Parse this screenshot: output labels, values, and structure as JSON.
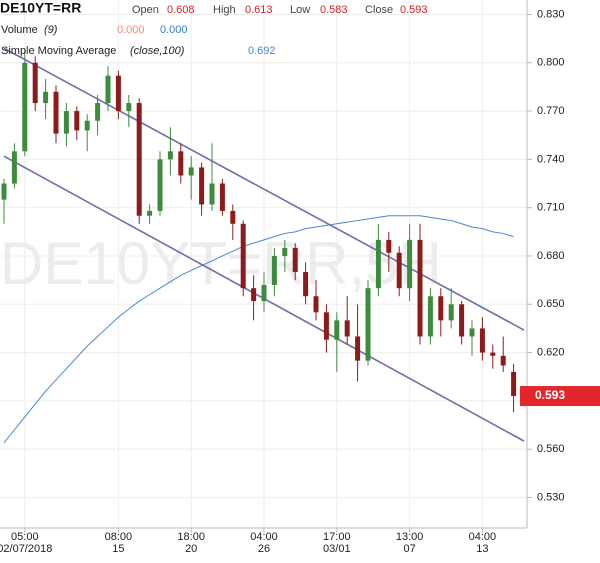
{
  "chart_data": {
    "type": "candlestick",
    "title": "DE10YT=RR",
    "watermark": "DE10YT=RR,5H",
    "ohlc_labels": {
      "open": "Open",
      "high": "High",
      "low": "Low",
      "close": "Close"
    },
    "up_color": "#3d8b3d",
    "down_color": "#8e1b1b",
    "categories": [
      null,
      null,
      "05:00",
      null,
      null,
      null,
      null,
      null,
      null,
      null,
      null,
      "08:00",
      null,
      null,
      null,
      null,
      null,
      null,
      "18:00",
      null,
      null,
      null,
      null,
      null,
      null,
      "04:00",
      null,
      null,
      null,
      null,
      null,
      null,
      "17:00",
      null,
      null,
      null,
      null,
      null,
      null,
      "13:00",
      null,
      null,
      null,
      null,
      null,
      null,
      "04:00",
      null,
      null,
      null
    ],
    "dates": [
      null,
      null,
      "02/07/2018",
      null,
      null,
      null,
      null,
      null,
      null,
      null,
      null,
      "15",
      null,
      null,
      null,
      null,
      null,
      null,
      "20",
      null,
      null,
      null,
      null,
      null,
      null,
      "26",
      null,
      null,
      null,
      null,
      null,
      null,
      "03/01",
      null,
      null,
      null,
      null,
      null,
      null,
      "07",
      null,
      null,
      null,
      null,
      null,
      null,
      "13",
      null,
      null,
      null
    ],
    "open": [
      0.715,
      0.725,
      0.745,
      0.8,
      0.775,
      0.782,
      0.756,
      0.77,
      0.758,
      0.764,
      0.775,
      0.792,
      0.77,
      0.775,
      0.705,
      0.708,
      0.74,
      0.745,
      0.73,
      0.735,
      0.712,
      0.725,
      0.708,
      0.7,
      0.66,
      0.652,
      0.662,
      0.68,
      0.685,
      0.67,
      0.655,
      0.645,
      0.628,
      0.64,
      0.63,
      0.615,
      0.66,
      0.69,
      0.682,
      0.66,
      0.69,
      0.63,
      0.655,
      0.64,
      0.65,
      0.63,
      0.635,
      0.62,
      0.618,
      0.608
    ],
    "high": [
      0.728,
      0.75,
      0.808,
      0.804,
      0.79,
      0.786,
      0.775,
      0.773,
      0.768,
      0.78,
      0.798,
      0.795,
      0.78,
      0.778,
      0.712,
      0.745,
      0.76,
      0.75,
      0.742,
      0.738,
      0.75,
      0.728,
      0.712,
      0.702,
      0.668,
      0.67,
      0.685,
      0.69,
      0.688,
      0.676,
      0.665,
      0.65,
      0.645,
      0.655,
      0.65,
      0.665,
      0.7,
      0.695,
      0.686,
      0.7,
      0.7,
      0.66,
      0.66,
      0.66,
      0.652,
      0.64,
      0.642,
      0.625,
      0.63,
      0.613
    ],
    "low": [
      0.7,
      0.722,
      0.742,
      0.77,
      0.765,
      0.75,
      0.748,
      0.752,
      0.745,
      0.755,
      0.77,
      0.765,
      0.76,
      0.7,
      0.7,
      0.705,
      0.73,
      0.725,
      0.715,
      0.705,
      0.708,
      0.705,
      0.69,
      0.655,
      0.64,
      0.645,
      0.655,
      0.67,
      0.665,
      0.65,
      0.64,
      0.62,
      0.608,
      0.625,
      0.602,
      0.612,
      0.655,
      0.67,
      0.655,
      0.652,
      0.625,
      0.625,
      0.63,
      0.635,
      0.625,
      0.618,
      0.615,
      0.61,
      0.608,
      0.583
    ],
    "close": [
      0.725,
      0.745,
      0.8,
      0.775,
      0.782,
      0.756,
      0.77,
      0.758,
      0.764,
      0.775,
      0.792,
      0.77,
      0.775,
      0.705,
      0.708,
      0.74,
      0.745,
      0.73,
      0.735,
      0.712,
      0.725,
      0.708,
      0.7,
      0.66,
      0.652,
      0.662,
      0.68,
      0.685,
      0.67,
      0.655,
      0.645,
      0.628,
      0.64,
      0.63,
      0.615,
      0.66,
      0.69,
      0.682,
      0.66,
      0.69,
      0.63,
      0.655,
      0.64,
      0.65,
      0.63,
      0.635,
      0.62,
      0.618,
      0.612,
      0.593
    ],
    "volume": {
      "name": "Volume",
      "params": "(9)",
      "colors": [
        "#f08a80",
        "#3b7dd8"
      ],
      "values": [
        {
          "value": 0,
          "label": "0.000"
        },
        {
          "value": 0,
          "label": "0.000"
        }
      ]
    },
    "sma": {
      "name": "Simple Moving Average",
      "params": "(close,100)",
      "color": "#4a86d8",
      "values": [
        0.564,
        0.572,
        0.58,
        0.588,
        0.596,
        0.603,
        0.61,
        0.617,
        0.624,
        0.63,
        0.636,
        0.642,
        0.647,
        0.652,
        0.656,
        0.66,
        0.664,
        0.668,
        0.671,
        0.674,
        0.677,
        0.68,
        0.683,
        0.686,
        0.688,
        0.69,
        0.692,
        0.694,
        0.695,
        0.697,
        0.698,
        0.699,
        0.7,
        0.701,
        0.702,
        0.703,
        0.704,
        0.705,
        0.705,
        0.705,
        0.705,
        0.704,
        0.703,
        0.702,
        0.7,
        0.698,
        0.697,
        0.695,
        0.694,
        0.692
      ]
    },
    "trendlines": [
      {
        "x": [
          0,
          50
        ],
        "values": [
          0.809,
          0.634
        ],
        "color": "#6e6eaa"
      },
      {
        "x": [
          0,
          50
        ],
        "values": [
          0.742,
          0.565
        ],
        "color": "#6e6eaa"
      }
    ],
    "last_price_color": "#e3262b",
    "ylim": [
      0.516,
      0.839
    ],
    "yticks": [
      {
        "value": 0.53,
        "label": "0.530"
      },
      {
        "value": 0.56,
        "label": "0.560"
      },
      {
        "value": 0.59,
        "label": "0.590"
      },
      {
        "value": 0.62,
        "label": "0.620"
      },
      {
        "value": 0.65,
        "label": "0.650"
      },
      {
        "value": 0.68,
        "label": "0.680"
      },
      {
        "value": 0.71,
        "label": "0.710"
      },
      {
        "value": 0.74,
        "label": "0.740"
      },
      {
        "value": 0.77,
        "label": "0.770"
      },
      {
        "value": 0.8,
        "label": "0.800"
      },
      {
        "value": 0.83,
        "label": "0.830"
      }
    ],
    "grid": true
  }
}
